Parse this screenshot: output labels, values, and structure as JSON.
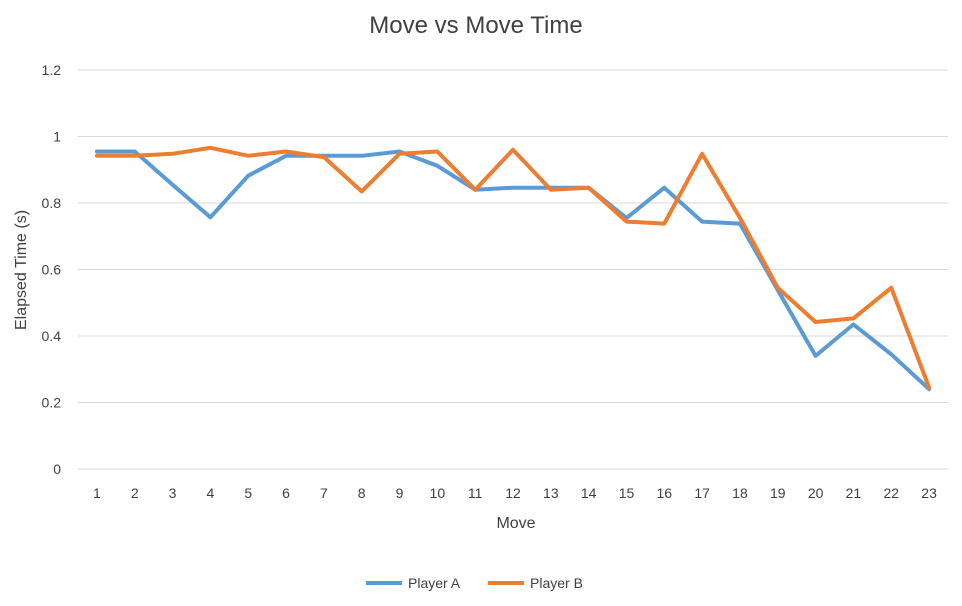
{
  "chart_data": {
    "type": "line",
    "title": "Move vs Move Time",
    "xlabel": "Move",
    "ylabel": "Elapsed Time (s)",
    "ylim": [
      0,
      1.2
    ],
    "yticks": [
      0,
      0.2,
      0.4,
      0.6,
      0.8,
      1,
      1.2
    ],
    "ytick_labels": [
      "0",
      "0.2",
      "0.4",
      "0.6",
      "0.8",
      "1",
      "1.2"
    ],
    "grid": true,
    "legend_position": "bottom",
    "categories": [
      "1",
      "2",
      "3",
      "4",
      "5",
      "6",
      "7",
      "8",
      "9",
      "10",
      "11",
      "12",
      "13",
      "14",
      "15",
      "16",
      "17",
      "18",
      "19",
      "20",
      "21",
      "22",
      "23"
    ],
    "series": [
      {
        "name": "Player A",
        "color": "#5b9bd5",
        "values": [
          0.955,
          0.955,
          0.855,
          0.757,
          0.882,
          0.942,
          0.942,
          0.942,
          0.955,
          0.912,
          0.84,
          0.846,
          0.846,
          0.846,
          0.755,
          0.846,
          0.744,
          0.738,
          0.538,
          0.34,
          0.435,
          0.345,
          0.24
        ]
      },
      {
        "name": "Player B",
        "color": "#ed7d31",
        "values": [
          0.942,
          0.942,
          0.948,
          0.966,
          0.942,
          0.955,
          0.938,
          0.835,
          0.948,
          0.955,
          0.84,
          0.96,
          0.84,
          0.846,
          0.744,
          0.738,
          0.948,
          0.755,
          0.545,
          0.442,
          0.453,
          0.545,
          0.245
        ]
      }
    ]
  }
}
